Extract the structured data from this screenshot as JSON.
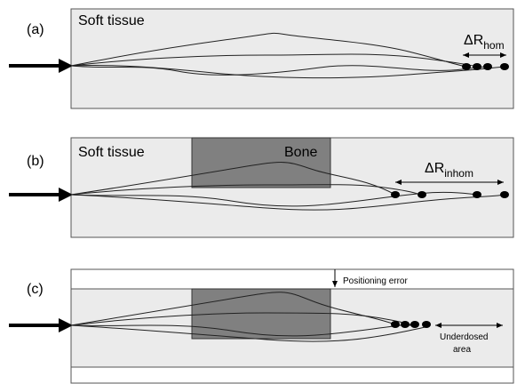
{
  "panels": [
    {
      "label": "(a)",
      "region": "Soft tissue",
      "range_symbol": "ΔR",
      "range_subscript": "hom"
    },
    {
      "label": "(b)",
      "region": "Soft tissue",
      "insert": "Bone",
      "range_symbol": "ΔR",
      "range_subscript": "inhom"
    },
    {
      "label": "(c)",
      "annotation": "Positioning error",
      "note_lines": [
        "Underdosed",
        "area"
      ]
    }
  ]
}
